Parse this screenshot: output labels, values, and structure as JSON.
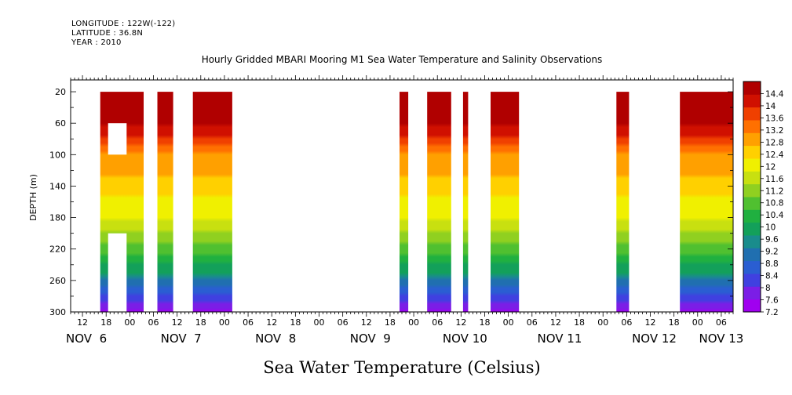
{
  "header": {
    "longitude": "LONGITUDE : 122W(-122)",
    "latitude": "LATITUDE : 36.8N",
    "year": "YEAR : 2010"
  },
  "chart_data": {
    "type": "heatmap",
    "title": "Hourly Gridded MBARI Mooring M1 Sea Water Temperature and Salinity Observations",
    "xlabel": "Sea Water Temperature (Celsius)",
    "ylabel": "DEPTH (m)",
    "y_axis": {
      "reversed": true,
      "ylim": [
        300,
        5
      ],
      "tick_values": [
        20,
        60,
        100,
        140,
        180,
        220,
        260,
        300
      ],
      "tick_labels": [
        "20",
        "60",
        "100",
        "140",
        "180",
        "220",
        "260",
        "300"
      ]
    },
    "x_axis": {
      "units": "hours since 2010-11-06 00:00 UTC",
      "xlim": [
        9,
        177
      ],
      "hour_ticks": [
        12,
        18,
        24,
        30,
        36,
        42,
        48,
        54,
        60,
        66,
        72,
        78,
        84,
        90,
        96,
        102,
        108,
        114,
        120,
        126,
        132,
        138,
        144,
        150,
        156,
        162,
        168,
        174
      ],
      "hour_labels": [
        "12",
        "18",
        "00",
        "06",
        "12",
        "18",
        "00",
        "06",
        "12",
        "18",
        "00",
        "06",
        "12",
        "18",
        "00",
        "06",
        "12",
        "18",
        "00",
        "06",
        "12",
        "18",
        "00",
        "06",
        "12",
        "18",
        "00",
        "06"
      ],
      "day_labels": [
        {
          "label": "NOV  6",
          "hour": 13
        },
        {
          "label": "NOV  7",
          "hour": 37
        },
        {
          "label": "NOV  8",
          "hour": 61
        },
        {
          "label": "NOV  9",
          "hour": 85
        },
        {
          "label": "NOV 10",
          "hour": 109
        },
        {
          "label": "NOV 11",
          "hour": 133
        },
        {
          "label": "NOV 12",
          "hour": 157
        },
        {
          "label": "NOV 13",
          "hour": 174
        }
      ]
    },
    "data_segments": [
      {
        "start_hour": 16.5,
        "end_hour": 27.5,
        "gaps": [
          {
            "hour_range": [
              18.5,
              23.2
            ],
            "depth_range": [
              60,
              100
            ]
          },
          {
            "hour_range": [
              18.5,
              23.2
            ],
            "depth_range": [
              200,
              300
            ]
          }
        ]
      },
      {
        "start_hour": 31,
        "end_hour": 35
      },
      {
        "start_hour": 40,
        "end_hour": 50
      },
      {
        "start_hour": 92.4,
        "end_hour": 94.6
      },
      {
        "start_hour": 99.4,
        "end_hour": 105.5
      },
      {
        "start_hour": 108.5,
        "end_hour": 109.8
      },
      {
        "start_hour": 115.5,
        "end_hour": 122.7
      },
      {
        "start_hour": 147.4,
        "end_hour": 150.6
      },
      {
        "start_hour": 163.5,
        "end_hour": 177
      }
    ],
    "colorbar": {
      "min": 7.2,
      "max": 14.8,
      "step": 0.2,
      "labels": [
        "7.2",
        "7.6",
        "8",
        "8.4",
        "8.8",
        "9.2",
        "9.6",
        "10",
        "10.4",
        "10.8",
        "11.2",
        "11.6",
        "12",
        "12.4",
        "12.8",
        "13.2",
        "13.6",
        "14",
        "14.4"
      ],
      "colors": [
        "#a000f0",
        "#7b1ee6",
        "#4040e0",
        "#2a5ed2",
        "#206fb0",
        "#198c8c",
        "#13a05a",
        "#20b040",
        "#50c030",
        "#90d020",
        "#c8e010",
        "#f0f000",
        "#ffd000",
        "#ffa000",
        "#ff7000",
        "#f04000",
        "#d01000",
        "#b00000"
      ]
    }
  }
}
